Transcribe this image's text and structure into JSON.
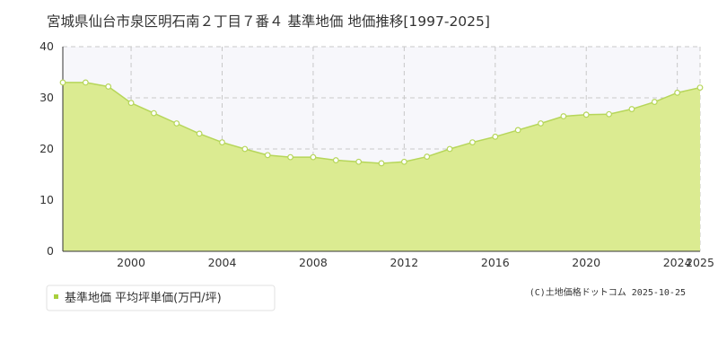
{
  "colors": {
    "area": "#dbeb91",
    "line": "#b6d65a",
    "upper_band": "#f7f7fb",
    "marker_fill": "#ffffff",
    "legend_marker": "#a8cf3c"
  },
  "credit": "(C)土地価格ドットコム 2025-10-25",
  "chart_data": {
    "type": "area",
    "title": "宮城県仙台市泉区明石南２丁目７番４ 基準地価 地価推移[1997-2025]",
    "xlabel": "",
    "ylabel": "",
    "xlim": [
      1997,
      2025
    ],
    "ylim": [
      0,
      40
    ],
    "y_ticks": [
      0,
      10,
      20,
      30,
      40
    ],
    "x_ticks": [
      2000,
      2004,
      2008,
      2012,
      2016,
      2020,
      2024,
      2025
    ],
    "grid": true,
    "legend_position": "bottom-left",
    "series": [
      {
        "name": "基準地価 平均坪単価(万円/坪)",
        "x": [
          1997,
          1998,
          1999,
          2000,
          2001,
          2002,
          2003,
          2004,
          2005,
          2006,
          2007,
          2008,
          2009,
          2010,
          2011,
          2012,
          2013,
          2014,
          2015,
          2016,
          2017,
          2018,
          2019,
          2020,
          2021,
          2022,
          2023,
          2024,
          2025
        ],
        "values": [
          33.0,
          33.0,
          32.2,
          29.0,
          27.0,
          25.0,
          23.0,
          21.3,
          20.0,
          18.8,
          18.4,
          18.4,
          17.8,
          17.5,
          17.2,
          17.5,
          18.5,
          20.0,
          21.3,
          22.4,
          23.7,
          25.0,
          26.4,
          26.7,
          26.8,
          27.8,
          29.2,
          31.0,
          32.0
        ]
      }
    ]
  }
}
